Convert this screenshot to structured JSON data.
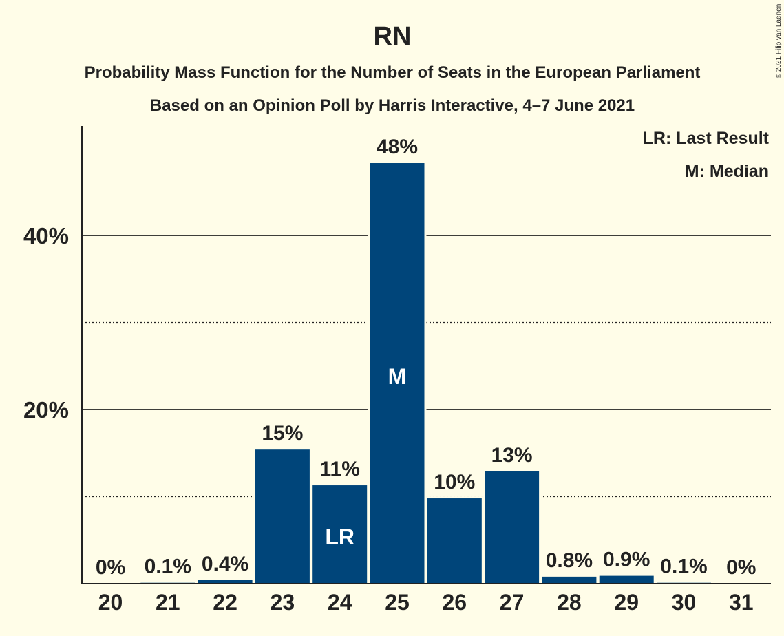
{
  "chart_data": {
    "type": "bar",
    "title": "RN",
    "subtitle_1": "Probability Mass Function for the Number of Seats in the European Parliament",
    "subtitle_2": "Based on an Opinion Poll by Harris Interactive, 4–7 June 2021",
    "categories": [
      "20",
      "21",
      "22",
      "23",
      "24",
      "25",
      "26",
      "27",
      "28",
      "29",
      "30",
      "31"
    ],
    "values": [
      0,
      0.1,
      0.4,
      15.4,
      11.3,
      48.3,
      9.8,
      12.9,
      0.8,
      0.9,
      0.1,
      0
    ],
    "data_labels": [
      "0%",
      "0.1%",
      "0.4%",
      "15%",
      "11%",
      "48%",
      "10%",
      "13%",
      "0.8%",
      "0.9%",
      "0.1%",
      "0%"
    ],
    "bar_marks": {
      "24": "LR",
      "25": "M"
    },
    "y_ticks": [
      {
        "value": 20,
        "label": "20%"
      },
      {
        "value": 40,
        "label": "40%"
      }
    ],
    "minor_gridlines": [
      10,
      30
    ],
    "ylim": [
      0,
      52
    ],
    "legend": [
      "LR: Last Result",
      "M: Median"
    ],
    "legend_position": "top-right",
    "grid": true,
    "copyright": "© 2021 Filip van Laenen",
    "colors": {
      "bar": "#00457A",
      "background": "#FFFDE8",
      "text": "#222222",
      "mark_text": "#FFFFFF"
    }
  }
}
